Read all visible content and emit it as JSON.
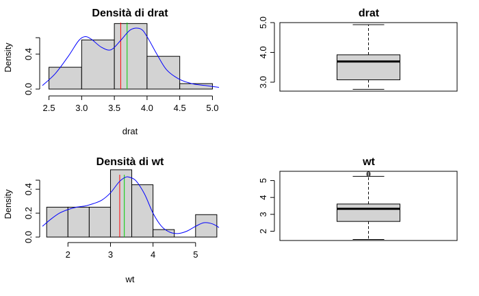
{
  "colors": {
    "bar_fill": "#d3d3d3",
    "density_line": "#0000ff",
    "median_line": "#ff0000",
    "mean_line": "#00cc00",
    "box_fill": "#d3d3d3",
    "axis": "#000000"
  },
  "chart_data": [
    {
      "type": "histogram",
      "title": "Densità di drat",
      "xlabel": "drat",
      "ylabel": "Density",
      "bins": [
        [
          2.5,
          3.0
        ],
        [
          3.0,
          3.5
        ],
        [
          3.5,
          4.0
        ],
        [
          4.0,
          4.5
        ],
        [
          4.5,
          5.0
        ]
      ],
      "values": [
        0.25,
        0.5625,
        0.75,
        0.375,
        0.0625
      ],
      "xlim": [
        2.4,
        5.1
      ],
      "ylim": [
        0,
        0.8
      ],
      "xticks": [
        "2.5",
        "3.0",
        "3.5",
        "4.0",
        "4.5",
        "5.0"
      ],
      "yticks": [
        "0.0",
        "0.4"
      ],
      "median": 3.695,
      "mean": 3.597,
      "density_curve": {
        "x": [
          2.4,
          2.6,
          2.8,
          2.95,
          3.05,
          3.15,
          3.3,
          3.45,
          3.6,
          3.75,
          3.9,
          4.0,
          4.15,
          4.3,
          4.5,
          4.7,
          4.9,
          5.1
        ],
        "y": [
          0.04,
          0.18,
          0.38,
          0.55,
          0.6,
          0.57,
          0.48,
          0.45,
          0.56,
          0.68,
          0.69,
          0.6,
          0.4,
          0.22,
          0.11,
          0.06,
          0.04,
          0.02
        ]
      }
    },
    {
      "type": "boxplot",
      "title": "drat",
      "ylim": [
        2.7,
        5.0
      ],
      "yticks": [
        "3.0",
        "4.0",
        "5.0"
      ],
      "stats": {
        "min": 2.76,
        "q1": 3.08,
        "median": 3.695,
        "q3": 3.92,
        "max": 4.93
      },
      "outliers": []
    },
    {
      "type": "histogram",
      "title": "Densità di wt",
      "xlabel": "wt",
      "ylabel": "Density",
      "bins": [
        [
          1.5,
          2.0
        ],
        [
          2.0,
          2.5
        ],
        [
          2.5,
          3.0
        ],
        [
          3.0,
          3.5
        ],
        [
          3.5,
          4.0
        ],
        [
          4.0,
          4.5
        ],
        [
          4.5,
          5.0
        ],
        [
          5.0,
          5.5
        ]
      ],
      "values": [
        0.25,
        0.25,
        0.25,
        0.5625,
        0.4375,
        0.0625,
        0.0,
        0.1875
      ],
      "xlim": [
        1.4,
        5.55
      ],
      "ylim": [
        0,
        0.55
      ],
      "xticks": [
        "2",
        "3",
        "4",
        "5"
      ],
      "yticks": [
        "0.0",
        "0.2",
        "0.4"
      ],
      "median": 3.325,
      "mean": 3.217,
      "density_curve": {
        "x": [
          1.4,
          1.6,
          1.8,
          2.0,
          2.2,
          2.4,
          2.6,
          2.8,
          3.0,
          3.2,
          3.35,
          3.45,
          3.6,
          3.8,
          4.0,
          4.2,
          4.4,
          4.6,
          4.8,
          5.0,
          5.2,
          5.4,
          5.55
        ],
        "y": [
          0.09,
          0.15,
          0.2,
          0.23,
          0.25,
          0.26,
          0.28,
          0.31,
          0.37,
          0.46,
          0.5,
          0.5,
          0.47,
          0.36,
          0.2,
          0.09,
          0.04,
          0.03,
          0.05,
          0.09,
          0.12,
          0.11,
          0.08
        ]
      }
    },
    {
      "type": "boxplot",
      "title": "wt",
      "ylim": [
        1.45,
        5.55
      ],
      "yticks": [
        "2",
        "3",
        "4",
        "5"
      ],
      "stats": {
        "min": 1.513,
        "q1": 2.58,
        "median": 3.325,
        "q3": 3.61,
        "max": 5.25
      },
      "outliers": [
        5.345,
        5.424
      ]
    }
  ]
}
